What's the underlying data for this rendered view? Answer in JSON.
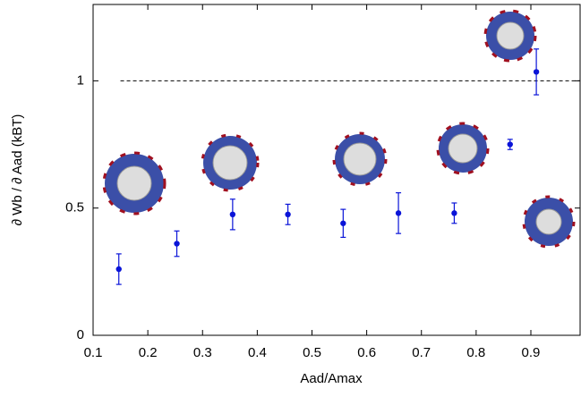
{
  "chart_data": {
    "type": "scatter",
    "x_label": "Aad/Amax",
    "y_label": "∂ Wb / ∂ Aad (kBT)",
    "series": [
      {
        "color": "#0a14d8",
        "x": [
          0.147,
          0.253,
          0.355,
          0.456,
          0.557,
          0.658,
          0.76,
          0.862,
          0.91
        ],
        "values": [
          0.26,
          0.36,
          0.475,
          0.475,
          0.44,
          0.48,
          0.48,
          0.75,
          1.035
        ],
        "errors": [
          0.06,
          0.05,
          0.06,
          0.04,
          0.055,
          0.08,
          0.04,
          0.02,
          0.09
        ]
      }
    ],
    "reference_line": 1,
    "xlim": [
      0.1,
      0.99
    ],
    "ylim": [
      0,
      1.3
    ],
    "xticks": [
      0.1,
      0.2,
      0.3,
      0.4,
      0.5,
      0.6,
      0.7,
      0.8,
      0.9
    ],
    "yticks": [
      0,
      0.5,
      1
    ]
  }
}
